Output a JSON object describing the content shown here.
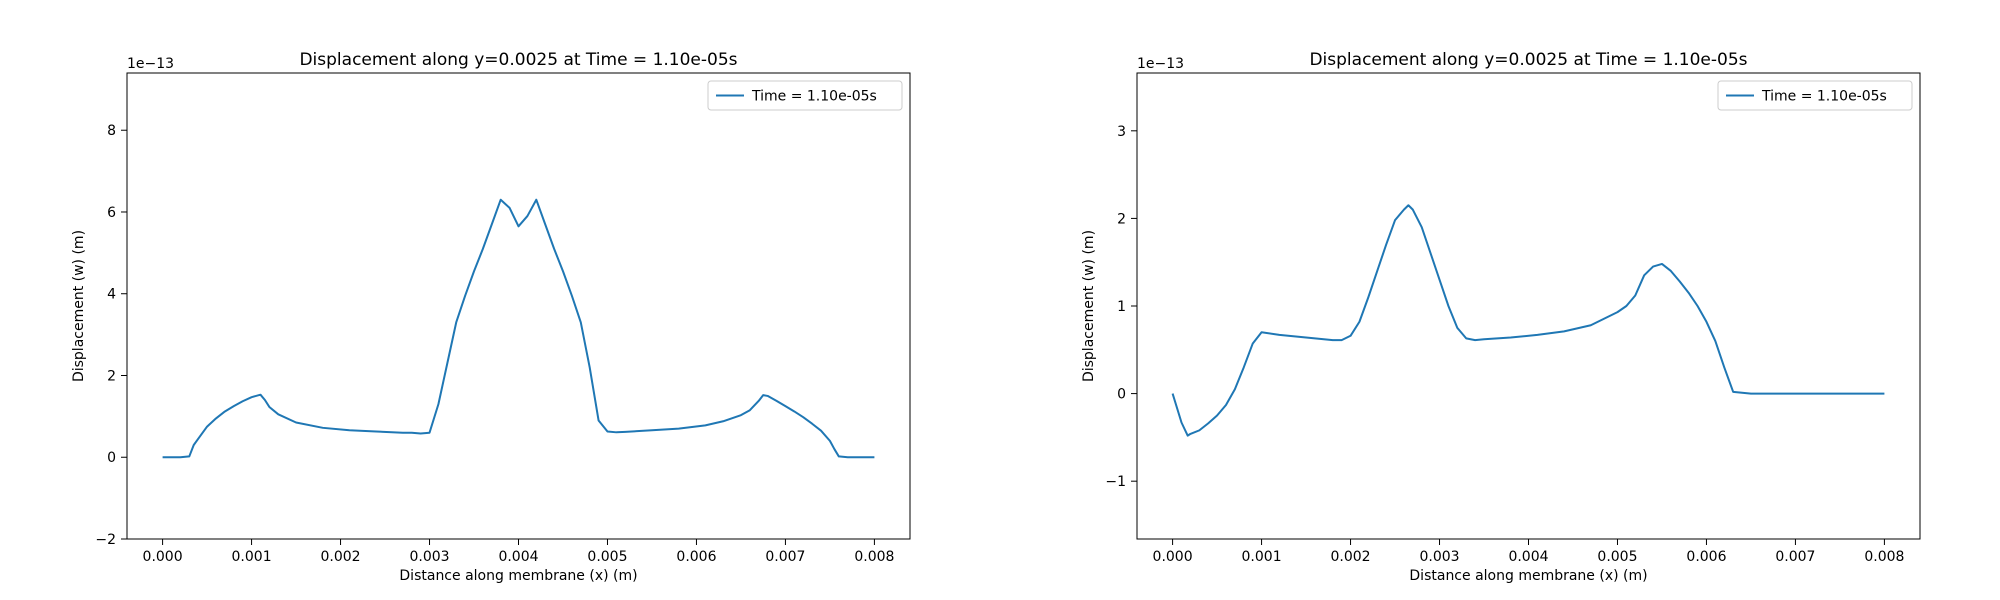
{
  "chart_data": [
    {
      "type": "line",
      "title": "Displacement along y=0.0025 at Time = 1.10e-05s",
      "xlabel": "Distance along membrane (x) (m)",
      "ylabel": "Displacement (w) (m)",
      "y_scale_label": "1e−13",
      "xlim": [
        -0.0004,
        0.0084
      ],
      "ylim": [
        -2,
        9.4
      ],
      "xticks": [
        0.0,
        0.001,
        0.002,
        0.003,
        0.004,
        0.005,
        0.006,
        0.007,
        0.008
      ],
      "xtick_labels": [
        "0.000",
        "0.001",
        "0.002",
        "0.003",
        "0.004",
        "0.005",
        "0.006",
        "0.007",
        "0.008"
      ],
      "yticks": [
        -2,
        0,
        2,
        4,
        6,
        8
      ],
      "ytick_labels": [
        "−2",
        "0",
        "2",
        "4",
        "6",
        "8"
      ],
      "grid": false,
      "legend_position": "top-right",
      "series": [
        {
          "name": "Time = 1.10e-05s",
          "color": "#1f77b4",
          "x": [
            0.0,
            0.0002,
            0.0003,
            0.00035,
            0.0004,
            0.0005,
            0.0006,
            0.0007,
            0.0008,
            0.0009,
            0.001,
            0.0011,
            0.00115,
            0.0012,
            0.0013,
            0.0015,
            0.0018,
            0.0021,
            0.0024,
            0.0027,
            0.0028,
            0.0029,
            0.003,
            0.0031,
            0.0032,
            0.0033,
            0.0034,
            0.0035,
            0.0036,
            0.0037,
            0.0038,
            0.0039,
            0.004,
            0.0041,
            0.0042,
            0.0043,
            0.0044,
            0.0045,
            0.0046,
            0.0047,
            0.0048,
            0.0049,
            0.005,
            0.0051,
            0.0052,
            0.0055,
            0.0058,
            0.0061,
            0.0063,
            0.0065,
            0.0066,
            0.0067,
            0.00675,
            0.0068,
            0.0069,
            0.007,
            0.0071,
            0.0072,
            0.0073,
            0.0074,
            0.0075,
            0.00755,
            0.0076,
            0.0077,
            0.0078,
            0.0079,
            0.008
          ],
          "y": [
            0.0,
            0.0,
            0.02,
            0.3,
            0.45,
            0.75,
            0.95,
            1.12,
            1.25,
            1.37,
            1.47,
            1.53,
            1.4,
            1.23,
            1.05,
            0.85,
            0.72,
            0.66,
            0.63,
            0.6,
            0.6,
            0.58,
            0.6,
            1.3,
            2.3,
            3.3,
            3.95,
            4.55,
            5.1,
            5.7,
            6.3,
            6.1,
            5.65,
            5.9,
            6.3,
            5.7,
            5.1,
            4.55,
            3.95,
            3.3,
            2.2,
            0.9,
            0.63,
            0.61,
            0.62,
            0.66,
            0.7,
            0.78,
            0.88,
            1.03,
            1.15,
            1.38,
            1.52,
            1.5,
            1.38,
            1.25,
            1.12,
            0.98,
            0.82,
            0.65,
            0.4,
            0.2,
            0.02,
            0.0,
            0.0,
            0.0,
            0.0
          ]
        }
      ]
    },
    {
      "type": "line",
      "title": "Displacement along y=0.0025 at Time = 1.10e-05s",
      "xlabel": "Distance along membrane (x) (m)",
      "ylabel": "Displacement (w) (m)",
      "y_scale_label": "1e−13",
      "xlim": [
        -0.0004,
        0.0084
      ],
      "ylim": [
        -1.66,
        3.66
      ],
      "xticks": [
        0.0,
        0.001,
        0.002,
        0.003,
        0.004,
        0.005,
        0.006,
        0.007,
        0.008
      ],
      "xtick_labels": [
        "0.000",
        "0.001",
        "0.002",
        "0.003",
        "0.004",
        "0.005",
        "0.006",
        "0.007",
        "0.008"
      ],
      "yticks": [
        -1,
        0,
        1,
        2,
        3
      ],
      "ytick_labels": [
        "−1",
        "0",
        "1",
        "2",
        "3"
      ],
      "grid": false,
      "legend_position": "top-right",
      "series": [
        {
          "name": "Time = 1.10e-05s",
          "color": "#1f77b4",
          "x": [
            0.0,
            0.0001,
            0.00017,
            0.0002,
            0.0003,
            0.0004,
            0.0005,
            0.0006,
            0.0007,
            0.0008,
            0.0009,
            0.001,
            0.0012,
            0.0015,
            0.0018,
            0.0019,
            0.002,
            0.0021,
            0.0022,
            0.0023,
            0.0024,
            0.0025,
            0.0026,
            0.00265,
            0.0027,
            0.0028,
            0.0029,
            0.003,
            0.0031,
            0.0032,
            0.0033,
            0.0034,
            0.0035,
            0.0038,
            0.0041,
            0.0044,
            0.0047,
            0.005,
            0.0051,
            0.0052,
            0.0053,
            0.0054,
            0.0055,
            0.0056,
            0.0057,
            0.0058,
            0.0059,
            0.006,
            0.0061,
            0.0062,
            0.0063,
            0.0065,
            0.007,
            0.0075,
            0.008
          ],
          "y": [
            0.0,
            -0.33,
            -0.48,
            -0.46,
            -0.42,
            -0.34,
            -0.25,
            -0.13,
            0.05,
            0.3,
            0.57,
            0.7,
            0.67,
            0.64,
            0.61,
            0.61,
            0.66,
            0.82,
            1.1,
            1.4,
            1.7,
            1.98,
            2.1,
            2.15,
            2.1,
            1.9,
            1.6,
            1.3,
            1.0,
            0.75,
            0.63,
            0.61,
            0.62,
            0.64,
            0.67,
            0.71,
            0.78,
            0.93,
            1.0,
            1.12,
            1.35,
            1.45,
            1.48,
            1.4,
            1.28,
            1.15,
            1.0,
            0.82,
            0.6,
            0.3,
            0.02,
            0.0,
            0.0,
            0.0,
            0.0
          ]
        }
      ]
    }
  ]
}
